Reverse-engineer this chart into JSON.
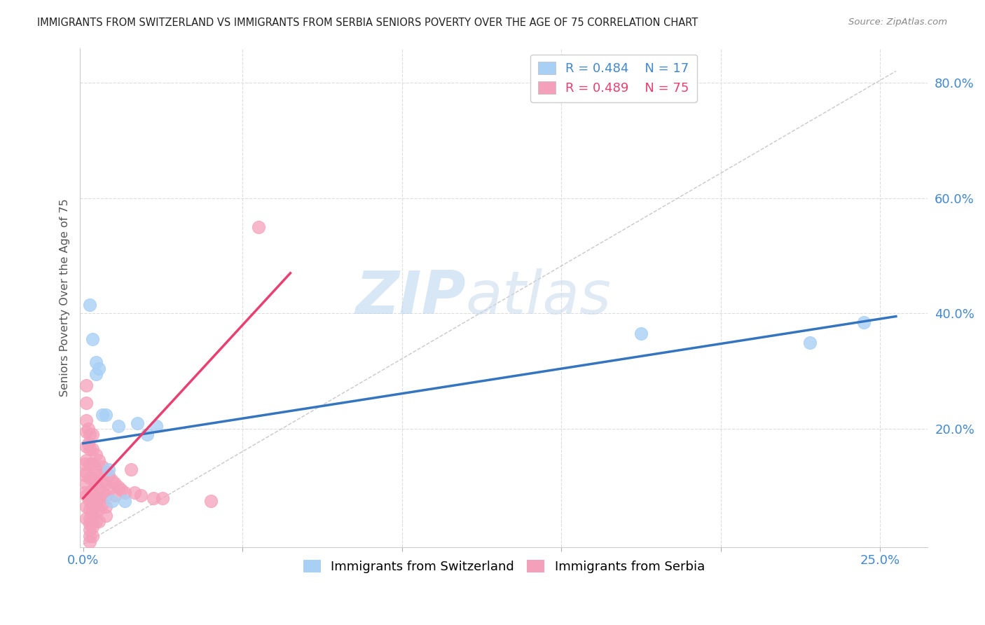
{
  "title": "IMMIGRANTS FROM SWITZERLAND VS IMMIGRANTS FROM SERBIA SENIORS POVERTY OVER THE AGE OF 75 CORRELATION CHART",
  "source": "Source: ZipAtlas.com",
  "xlim": [
    -0.001,
    0.265
  ],
  "ylim": [
    -0.005,
    0.86
  ],
  "R_switzerland": 0.484,
  "N_switzerland": 17,
  "R_serbia": 0.489,
  "N_serbia": 75,
  "color_switzerland": "#A8D0F5",
  "color_serbia": "#F5A0BA",
  "watermark_zip": "ZIP",
  "watermark_atlas": "atlas",
  "ylabel": "Seniors Poverty Over the Age of 75",
  "sw_trend": [
    0.0,
    0.175,
    0.255,
    0.395
  ],
  "sr_trend": [
    0.0,
    0.08,
    0.065,
    0.47
  ],
  "ref_line": [
    0.0,
    0.0,
    0.255,
    0.82
  ],
  "switzerland_x": [
    0.002,
    0.003,
    0.004,
    0.004,
    0.005,
    0.006,
    0.007,
    0.008,
    0.009,
    0.011,
    0.013,
    0.017,
    0.02,
    0.023,
    0.175,
    0.228,
    0.245
  ],
  "switzerland_y": [
    0.415,
    0.355,
    0.315,
    0.295,
    0.305,
    0.225,
    0.225,
    0.13,
    0.075,
    0.205,
    0.075,
    0.21,
    0.19,
    0.205,
    0.365,
    0.35,
    0.385
  ],
  "serbia_x": [
    0.0005,
    0.0005,
    0.0005,
    0.001,
    0.001,
    0.001,
    0.001,
    0.001,
    0.001,
    0.001,
    0.001,
    0.001,
    0.001,
    0.001,
    0.0015,
    0.0015,
    0.002,
    0.002,
    0.002,
    0.002,
    0.002,
    0.002,
    0.002,
    0.002,
    0.002,
    0.002,
    0.002,
    0.002,
    0.003,
    0.003,
    0.003,
    0.003,
    0.003,
    0.003,
    0.003,
    0.003,
    0.003,
    0.003,
    0.0035,
    0.004,
    0.004,
    0.004,
    0.004,
    0.004,
    0.004,
    0.005,
    0.005,
    0.005,
    0.005,
    0.005,
    0.005,
    0.006,
    0.006,
    0.006,
    0.006,
    0.007,
    0.007,
    0.007,
    0.007,
    0.007,
    0.008,
    0.008,
    0.009,
    0.01,
    0.01,
    0.011,
    0.012,
    0.013,
    0.015,
    0.016,
    0.018,
    0.022,
    0.025,
    0.04,
    0.055
  ],
  "serbia_y": [
    0.14,
    0.12,
    0.09,
    0.275,
    0.245,
    0.215,
    0.195,
    0.17,
    0.145,
    0.125,
    0.105,
    0.085,
    0.065,
    0.045,
    0.2,
    0.175,
    0.19,
    0.165,
    0.14,
    0.115,
    0.09,
    0.075,
    0.06,
    0.045,
    0.035,
    0.025,
    0.015,
    0.005,
    0.19,
    0.165,
    0.14,
    0.115,
    0.095,
    0.075,
    0.06,
    0.045,
    0.03,
    0.015,
    0.08,
    0.155,
    0.13,
    0.105,
    0.08,
    0.06,
    0.04,
    0.145,
    0.12,
    0.1,
    0.08,
    0.06,
    0.04,
    0.135,
    0.11,
    0.09,
    0.07,
    0.125,
    0.105,
    0.085,
    0.065,
    0.05,
    0.12,
    0.095,
    0.11,
    0.105,
    0.085,
    0.1,
    0.095,
    0.09,
    0.13,
    0.09,
    0.085,
    0.08,
    0.08,
    0.075,
    0.55
  ]
}
